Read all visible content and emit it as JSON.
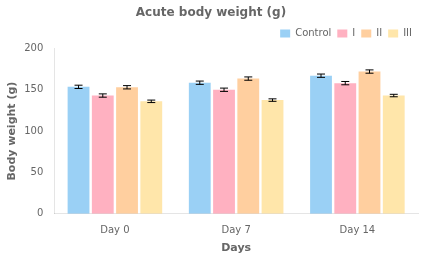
{
  "chart_data": {
    "type": "bar",
    "title": "Acute body weight (g)",
    "xlabel": "Days",
    "ylabel": "Body weight (g)",
    "categories": [
      "Day 0",
      "Day 7",
      "Day 14"
    ],
    "series": [
      {
        "name": "Control",
        "values": [
          153.5,
          158.5,
          167.0
        ],
        "errors": [
          2.0,
          2.0,
          2.0
        ]
      },
      {
        "name": "I",
        "values": [
          143.0,
          150.0,
          158.0
        ],
        "errors": [
          2.0,
          2.0,
          2.0
        ]
      },
      {
        "name": "II",
        "values": [
          153.0,
          163.5,
          172.0
        ],
        "errors": [
          2.0,
          2.0,
          2.0
        ]
      },
      {
        "name": "III",
        "values": [
          136.0,
          137.5,
          143.0
        ],
        "errors": [
          1.5,
          1.5,
          1.5
        ]
      }
    ],
    "ylim": [
      0,
      200
    ],
    "yticks": [
      0,
      50,
      100,
      150,
      200
    ],
    "grid": false,
    "legend": "upper right"
  }
}
